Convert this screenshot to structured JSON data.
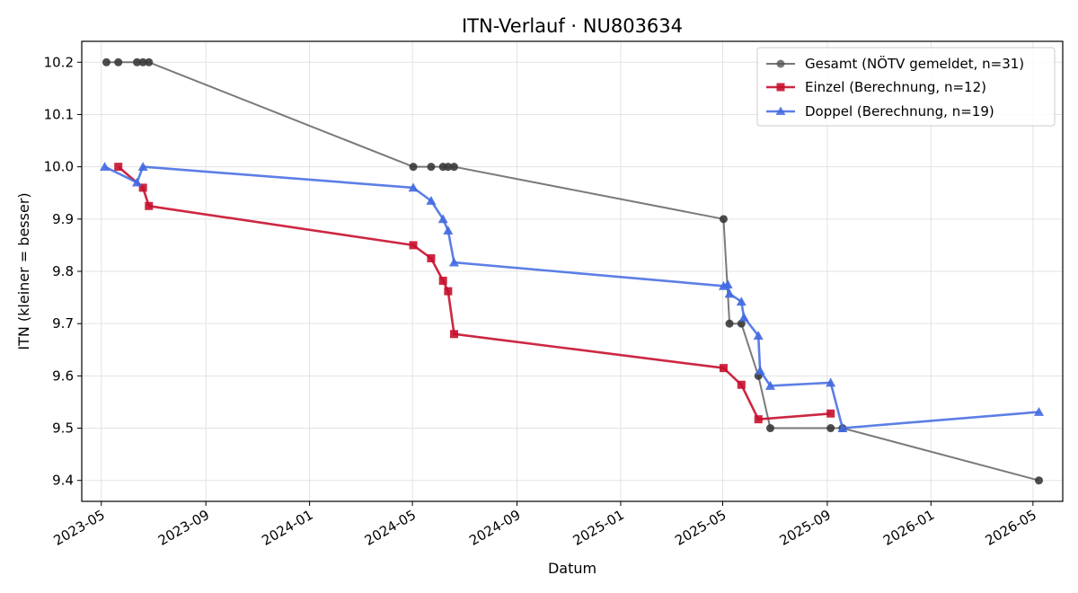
{
  "chart_data": {
    "type": "line",
    "title": "ITN-Verlauf · NU803634",
    "xlabel": "Datum",
    "ylabel": "ITN  (kleiner = besser)",
    "x_type": "date",
    "xlim": [
      "2023-04-08",
      "2026-06-05"
    ],
    "ylim": [
      9.36,
      10.24
    ],
    "x_ticks": [
      "2023-05-01",
      "2023-09-01",
      "2024-01-01",
      "2024-05-01",
      "2024-09-01",
      "2025-01-01",
      "2025-05-01",
      "2025-09-01",
      "2026-01-01",
      "2026-05-01"
    ],
    "x_tick_labels": [
      "2023-05",
      "2023-09",
      "2024-01",
      "2024-05",
      "2024-09",
      "2025-01",
      "2025-05",
      "2025-09",
      "2026-01",
      "2026-05"
    ],
    "y_ticks": [
      9.4,
      9.5,
      9.6,
      9.7,
      9.8,
      9.9,
      10.0,
      10.1,
      10.2
    ],
    "y_tick_labels": [
      "9.4",
      "9.5",
      "9.6",
      "9.7",
      "9.8",
      "9.9",
      "10.0",
      "10.1",
      "10.2"
    ],
    "grid": true,
    "legend_position": "top-right",
    "series": [
      {
        "name": "Gesamt (NÖTV gemeldet, n=31)",
        "color": "#555555",
        "marker": "circle",
        "points": [
          [
            "2023-05-07",
            10.2
          ],
          [
            "2023-05-21",
            10.2
          ],
          [
            "2023-06-12",
            10.2
          ],
          [
            "2023-06-19",
            10.2
          ],
          [
            "2023-06-26",
            10.2
          ],
          [
            "2024-05-02",
            10.0
          ],
          [
            "2024-05-23",
            10.0
          ],
          [
            "2024-06-06",
            10.0
          ],
          [
            "2024-06-12",
            10.0
          ],
          [
            "2024-06-19",
            10.0
          ],
          [
            "2025-05-02",
            9.9
          ],
          [
            "2025-05-09",
            9.7
          ],
          [
            "2025-05-23",
            9.7
          ],
          [
            "2025-06-12",
            9.6
          ],
          [
            "2025-06-26",
            9.5
          ],
          [
            "2025-09-05",
            9.5
          ],
          [
            "2025-09-19",
            9.5
          ],
          [
            "2026-05-08",
            9.4
          ]
        ]
      },
      {
        "name": "Einzel (Berechnung, n=12)",
        "color": "#c8102e",
        "marker": "square",
        "points": [
          [
            "2023-05-21",
            10.0
          ],
          [
            "2023-06-19",
            9.96
          ],
          [
            "2023-06-26",
            9.925
          ],
          [
            "2024-05-02",
            9.85
          ],
          [
            "2024-05-23",
            9.825
          ],
          [
            "2024-06-06",
            9.782
          ],
          [
            "2024-06-12",
            9.762
          ],
          [
            "2024-06-19",
            9.68
          ],
          [
            "2025-05-02",
            9.615
          ],
          [
            "2025-05-23",
            9.583
          ],
          [
            "2025-06-12",
            9.517
          ],
          [
            "2025-09-05",
            9.528
          ]
        ]
      },
      {
        "name": "Doppel (Berechnung, n=19)",
        "color": "#4169e1",
        "marker": "triangle",
        "points": [
          [
            "2023-05-05",
            10.0
          ],
          [
            "2023-06-12",
            9.97
          ],
          [
            "2023-06-19",
            10.0
          ],
          [
            "2024-05-02",
            9.96
          ],
          [
            "2024-05-23",
            9.935
          ],
          [
            "2024-06-06",
            9.9
          ],
          [
            "2024-06-12",
            9.878
          ],
          [
            "2024-06-19",
            9.817
          ],
          [
            "2025-05-02",
            9.772
          ],
          [
            "2025-05-07",
            9.775
          ],
          [
            "2025-05-09",
            9.757
          ],
          [
            "2025-05-23",
            9.742
          ],
          [
            "2025-05-26",
            9.712
          ],
          [
            "2025-06-12",
            9.677
          ],
          [
            "2025-06-14",
            9.61
          ],
          [
            "2025-06-26",
            9.581
          ],
          [
            "2025-09-05",
            9.587
          ],
          [
            "2025-09-19",
            9.5
          ],
          [
            "2026-05-08",
            9.531
          ]
        ]
      }
    ]
  }
}
